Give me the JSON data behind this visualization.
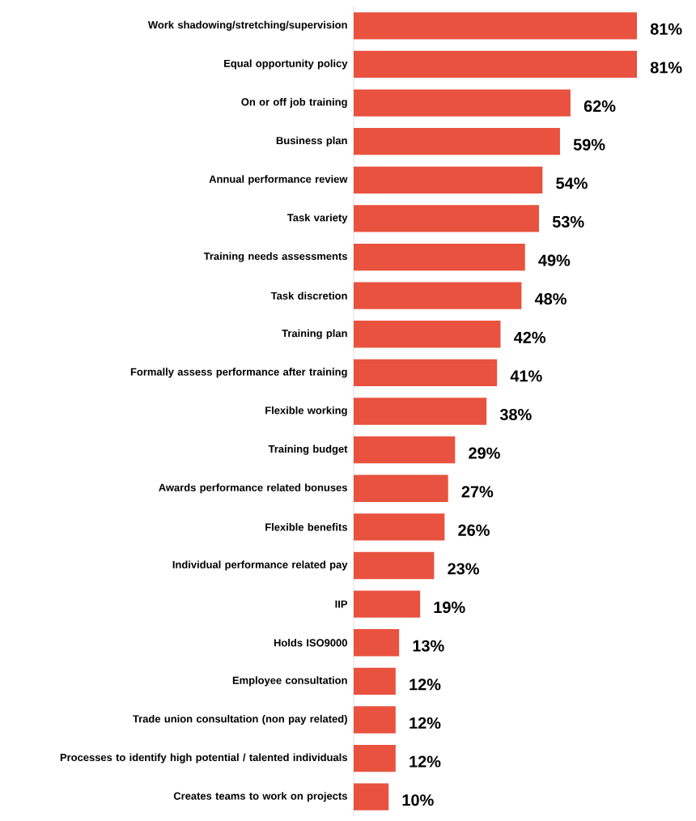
{
  "chart_data": {
    "type": "bar",
    "orientation": "horizontal",
    "categories": [
      "Work shadowing/stretching/supervision",
      "Equal opportunity policy",
      "On or off job training",
      "Business plan",
      "Annual performance review",
      "Task variety",
      "Training needs assessments",
      "Task discretion",
      "Training plan",
      "Formally assess performance after training",
      "Flexible working",
      "Training budget",
      "Awards performance related bonuses",
      "Flexible benefits",
      "Individual performance related pay",
      "IIP",
      "Holds ISO9000",
      "Employee consultation",
      "Trade union consultation (non pay related)",
      "Processes to identify high potential / talented individuals",
      "Creates teams to work on projects"
    ],
    "values": [
      81,
      81,
      62,
      59,
      54,
      53,
      49,
      48,
      42,
      41,
      38,
      29,
      27,
      26,
      23,
      19,
      13,
      12,
      12,
      12,
      10
    ],
    "value_labels": [
      "81%",
      "81%",
      "62%",
      "59%",
      "54%",
      "53%",
      "49%",
      "48%",
      "42%",
      "41%",
      "38%",
      "29%",
      "27%",
      "26%",
      "23%",
      "19%",
      "13%",
      "12%",
      "12%",
      "12%",
      "10%"
    ],
    "color": "#e8523f"
  }
}
